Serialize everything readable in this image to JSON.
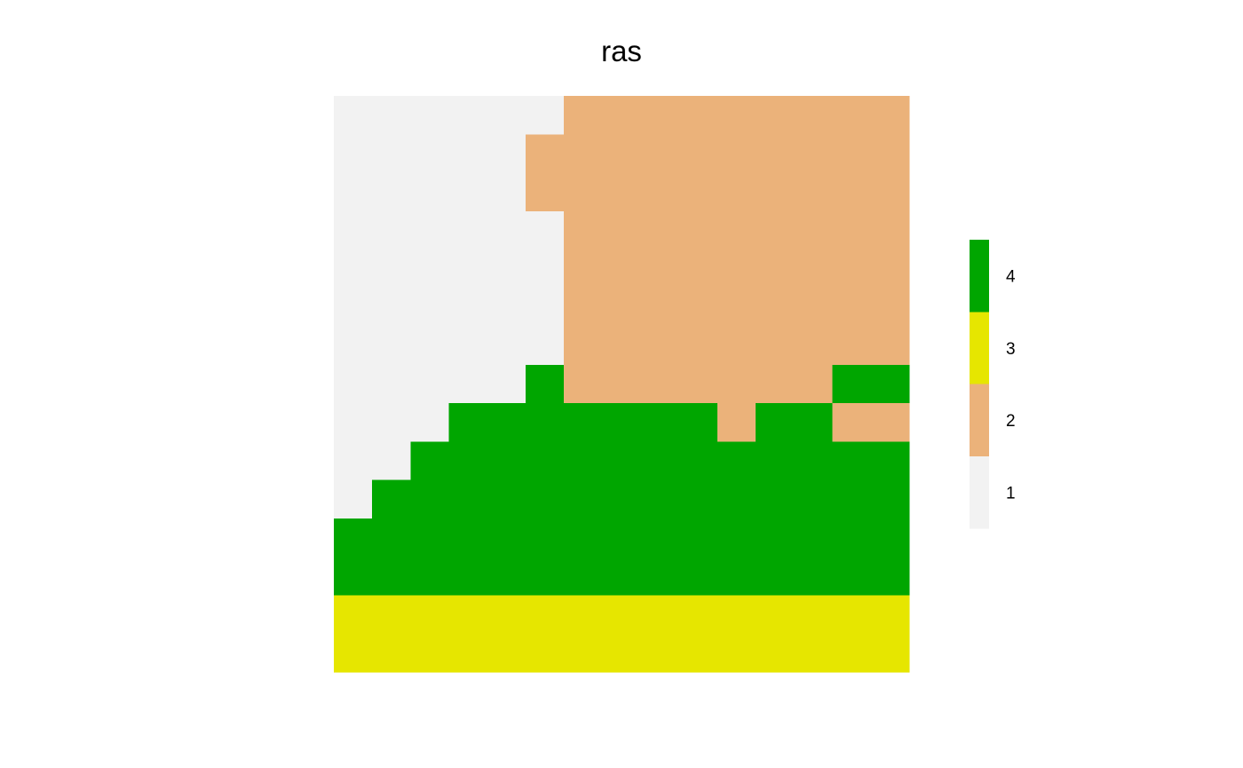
{
  "chart_data": {
    "type": "heatmap",
    "title": "ras",
    "ncols": 15,
    "nrows": 15,
    "cells": [
      [
        1,
        1,
        1,
        1,
        1,
        1,
        2,
        2,
        2,
        2,
        2,
        2,
        2,
        2,
        2
      ],
      [
        1,
        1,
        1,
        1,
        1,
        2,
        2,
        2,
        2,
        2,
        2,
        2,
        2,
        2,
        2
      ],
      [
        1,
        1,
        1,
        1,
        1,
        2,
        2,
        2,
        2,
        2,
        2,
        2,
        2,
        2,
        2
      ],
      [
        1,
        1,
        1,
        1,
        1,
        1,
        2,
        2,
        2,
        2,
        2,
        2,
        2,
        2,
        2
      ],
      [
        1,
        1,
        1,
        1,
        1,
        1,
        2,
        2,
        2,
        2,
        2,
        2,
        2,
        2,
        2
      ],
      [
        1,
        1,
        1,
        1,
        1,
        1,
        2,
        2,
        2,
        2,
        2,
        2,
        2,
        2,
        2
      ],
      [
        1,
        1,
        1,
        1,
        1,
        1,
        2,
        2,
        2,
        2,
        2,
        2,
        2,
        2,
        2
      ],
      [
        1,
        1,
        1,
        1,
        1,
        4,
        2,
        2,
        2,
        2,
        2,
        2,
        2,
        4,
        4
      ],
      [
        1,
        1,
        1,
        4,
        4,
        4,
        4,
        4,
        4,
        4,
        2,
        4,
        4,
        2,
        2
      ],
      [
        1,
        1,
        4,
        4,
        4,
        4,
        4,
        4,
        4,
        4,
        4,
        4,
        4,
        4,
        4
      ],
      [
        1,
        4,
        4,
        4,
        4,
        4,
        4,
        4,
        4,
        4,
        4,
        4,
        4,
        4,
        4
      ],
      [
        4,
        4,
        4,
        4,
        4,
        4,
        4,
        4,
        4,
        4,
        4,
        4,
        4,
        4,
        4
      ],
      [
        4,
        4,
        4,
        4,
        4,
        4,
        4,
        4,
        4,
        4,
        4,
        4,
        4,
        4,
        4
      ],
      [
        3,
        3,
        3,
        3,
        3,
        3,
        3,
        3,
        3,
        3,
        3,
        3,
        3,
        3,
        3
      ],
      [
        3,
        3,
        3,
        3,
        3,
        3,
        3,
        3,
        3,
        3,
        3,
        3,
        3,
        3,
        3
      ]
    ],
    "legend": [
      {
        "value": 4,
        "label": "4",
        "color": "#00A600"
      },
      {
        "value": 3,
        "label": "3",
        "color": "#E6E600"
      },
      {
        "value": 2,
        "label": "2",
        "color": "#EBB27A"
      },
      {
        "value": 1,
        "label": "1",
        "color": "#F2F2F2"
      }
    ],
    "legend_position": "right"
  }
}
